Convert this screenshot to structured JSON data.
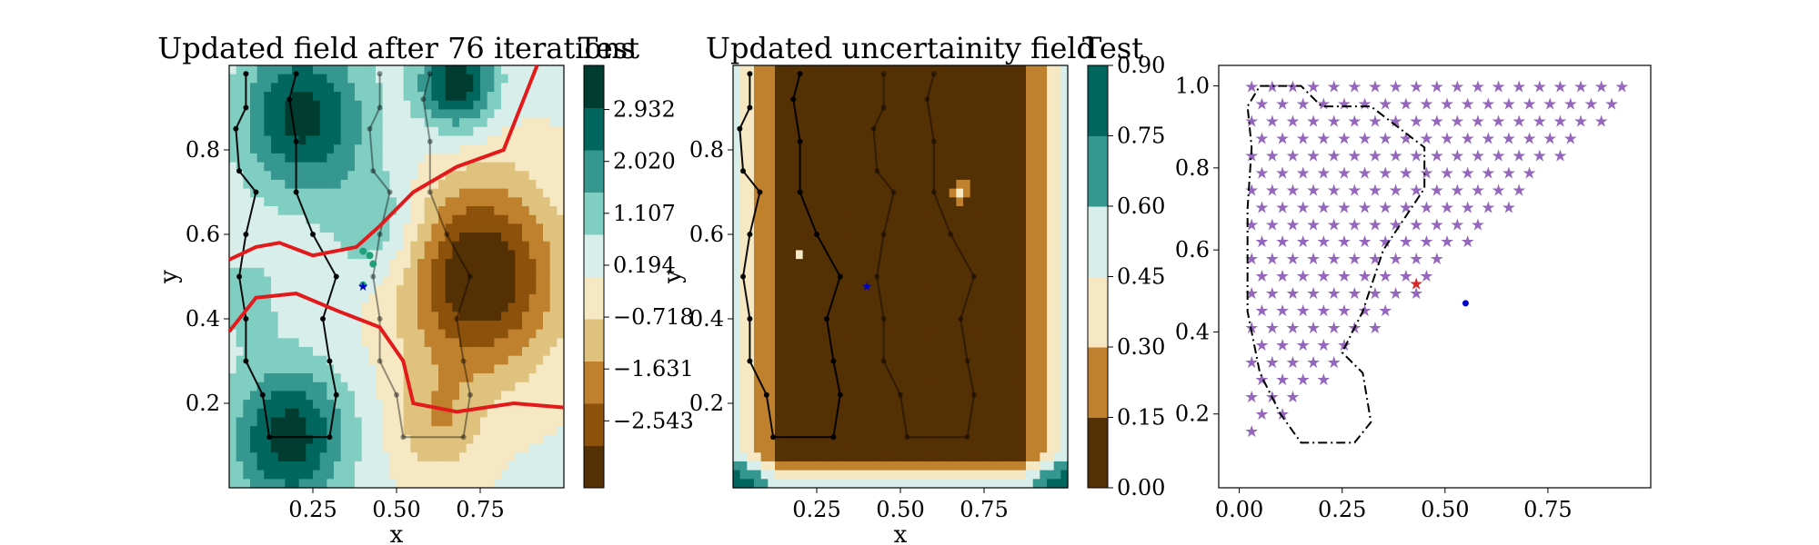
{
  "chart_data": [
    {
      "type": "heatmap",
      "title": "Updated field after 76 iterations",
      "colorbar_title": "Test",
      "xlabel": "x",
      "ylabel": "y",
      "xlim": [
        0.0,
        1.0
      ],
      "ylim": [
        0.0,
        1.0
      ],
      "x_ticks": [
        "0.25",
        "0.50",
        "0.75"
      ],
      "y_ticks": [
        "0.2",
        "0.4",
        "0.6",
        "0.8"
      ],
      "colorbar_ticks": [
        "2.932",
        "2.020",
        "1.107",
        "0.194",
        "−0.718",
        "−1.631",
        "−2.543"
      ],
      "colorbar_levels": 9,
      "colormap": [
        "#543005",
        "#8c510a",
        "#bf812d",
        "#dfc27d",
        "#f6e8c3",
        "#d8eeea",
        "#80cdc1",
        "#35978f",
        "#01665e",
        "#003c30"
      ],
      "features": {
        "low_center": [
          0.75,
          0.5
        ],
        "high_centers": [
          [
            0.18,
            0.12
          ],
          [
            0.22,
            0.9
          ],
          [
            0.68,
            0.95
          ]
        ],
        "threshold_contour_color": "#e31a1c",
        "path_points": [
          [
            0.4,
            0.48
          ],
          [
            0.42,
            0.55
          ],
          [
            0.43,
            0.53
          ],
          [
            0.4,
            0.56
          ]
        ],
        "current_location": [
          0.4,
          0.48
        ]
      }
    },
    {
      "type": "heatmap",
      "title": "Updated uncertainity field",
      "colorbar_title": "Test",
      "xlabel": "x",
      "ylabel": "y",
      "xlim": [
        0.0,
        1.0
      ],
      "ylim": [
        0.0,
        1.0
      ],
      "x_ticks": [
        "0.25",
        "0.50",
        "0.75"
      ],
      "y_ticks": [
        "0.2",
        "0.4",
        "0.6",
        "0.8"
      ],
      "colorbar_ticks": [
        "0.00",
        "0.15",
        "0.30",
        "0.45",
        "0.60",
        "0.75",
        "0.90"
      ],
      "colorbar_range": [
        0.0,
        0.9
      ],
      "colormap": [
        "#543005",
        "#bf812d",
        "#f6e8c3",
        "#d8eeea",
        "#35978f",
        "#01665e"
      ],
      "features": {
        "low_uncertainty_background": 0.05,
        "current_location": [
          0.4,
          0.48
        ]
      }
    },
    {
      "type": "scatter",
      "xlim": [
        -0.05,
        1.0
      ],
      "ylim": [
        0.02,
        1.05
      ],
      "x_ticks": [
        "0.00",
        "0.25",
        "0.50",
        "0.75"
      ],
      "y_ticks": [
        "0.2",
        "0.4",
        "0.6",
        "0.8",
        "1.0"
      ],
      "grid": false,
      "series": [
        {
          "marker": "star",
          "color": "#9467bd",
          "grid_rows": 22,
          "row_spacing": 0.042,
          "col_spacing": 0.05,
          "top_y": 1.0
        },
        {
          "marker": "star",
          "color": "#d62728",
          "points": [
            [
              0.43,
              0.52
            ]
          ]
        },
        {
          "marker": "dot",
          "color": "#0000cc",
          "points": [
            [
              0.55,
              0.47
            ]
          ]
        }
      ],
      "boundary_polygon": [
        [
          0.05,
          1.0
        ],
        [
          0.15,
          1.0
        ],
        [
          0.2,
          0.95
        ],
        [
          0.32,
          0.95
        ],
        [
          0.45,
          0.85
        ],
        [
          0.45,
          0.75
        ],
        [
          0.35,
          0.6
        ],
        [
          0.3,
          0.45
        ],
        [
          0.25,
          0.35
        ],
        [
          0.3,
          0.3
        ],
        [
          0.32,
          0.18
        ],
        [
          0.28,
          0.13
        ],
        [
          0.15,
          0.13
        ],
        [
          0.1,
          0.2
        ],
        [
          0.05,
          0.3
        ],
        [
          0.02,
          0.45
        ],
        [
          0.02,
          0.7
        ],
        [
          0.03,
          0.85
        ],
        [
          0.02,
          0.95
        ]
      ]
    }
  ]
}
